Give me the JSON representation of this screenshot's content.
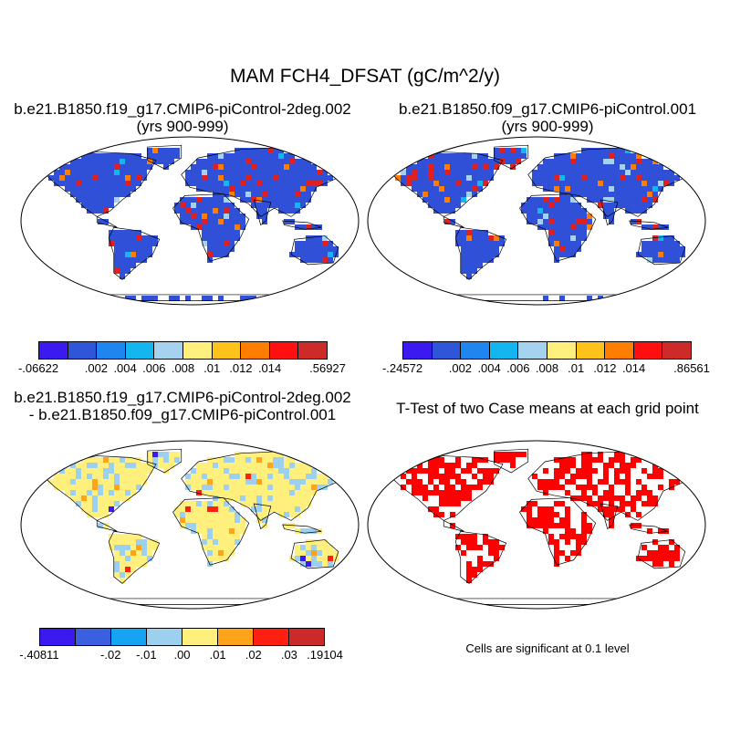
{
  "title": "MAM FCH4_DFSAT (gC/m^2/y)",
  "panels": [
    {
      "id": "p1",
      "line1": "b.e21.B1850.f19_g17.CMIP6-piControl-2deg.002",
      "line2": "(yrs 900-999)",
      "kind": "case"
    },
    {
      "id": "p2",
      "line1": "b.e21.B1850.f09_g17.CMIP6-piControl.001",
      "line2": "(yrs 900-999)",
      "kind": "case"
    },
    {
      "id": "p3",
      "line1": "b.e21.B1850.f19_g17.CMIP6-piControl-2deg.002",
      "line2": "- b.e21.B1850.f09_g17.CMIP6-piControl.001",
      "kind": "diff"
    },
    {
      "id": "p4",
      "line1": "T-Test of two Case means at each grid point",
      "line2": "",
      "kind": "ttest"
    }
  ],
  "colorbars": {
    "p1": {
      "colors": [
        "#3a1aef",
        "#2f55d8",
        "#1e86ee",
        "#14b6f0",
        "#a5d3ef",
        "#fff07e",
        "#ffc21a",
        "#ff7e00",
        "#ff0f0f",
        "#cd2a2a"
      ],
      "labels": [
        "-.06622",
        "",
        ".002",
        ".004",
        ".006",
        ".008",
        ".01",
        ".012",
        ".014",
        "",
        ".56927"
      ]
    },
    "p2": {
      "colors": [
        "#3a1aef",
        "#2f55d8",
        "#1e86ee",
        "#14b6f0",
        "#a5d3ef",
        "#fff07e",
        "#ffc21a",
        "#ff7e00",
        "#ff0f0f",
        "#cd2a2a"
      ],
      "labels": [
        "-.24572",
        "",
        ".002",
        ".004",
        ".006",
        ".008",
        ".01",
        ".012",
        ".014",
        "",
        ".86561"
      ]
    },
    "p3": {
      "colors": [
        "#3a1aef",
        "#3a5fe0",
        "#16a4f2",
        "#9dcfee",
        "#fff07e",
        "#ffa31a",
        "#ff1f10",
        "#cc2a2a"
      ],
      "labels": [
        "-.40811",
        "",
        "-.02",
        "-.01",
        ".00",
        ".01",
        ".02",
        ".03",
        ".19104"
      ]
    }
  },
  "significance_note": "Cells are significant at 0.1 level"
}
